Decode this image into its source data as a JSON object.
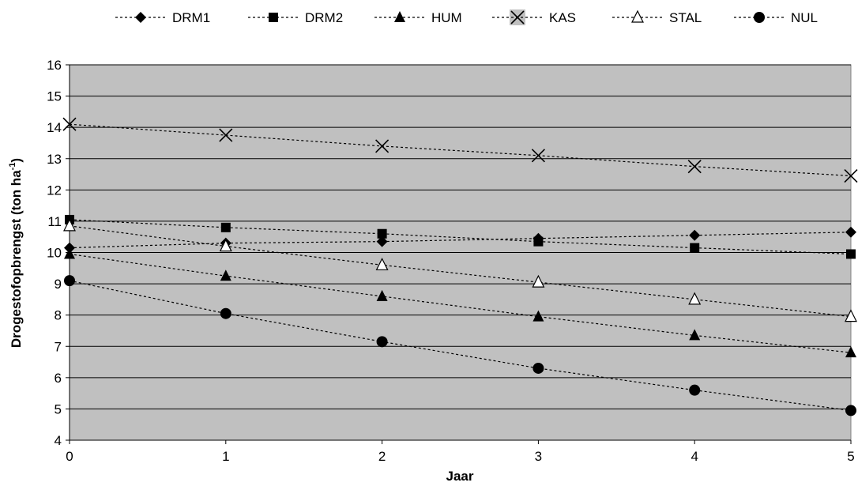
{
  "chart_data": {
    "type": "line",
    "title": "",
    "xlabel": "Jaar",
    "ylabel_main": "Drogestofopbrengst (ton ha",
    "ylabel_sup": "-1",
    "ylabel_close": ")",
    "xlim": [
      0,
      5
    ],
    "ylim": [
      4,
      16
    ],
    "x": [
      0,
      1,
      2,
      3,
      4,
      5
    ],
    "x_tick_labels": [
      "0",
      "1",
      "2",
      "3",
      "4",
      "5"
    ],
    "y_tick_labels": [
      "4",
      "5",
      "6",
      "7",
      "8",
      "9",
      "10",
      "11",
      "12",
      "13",
      "14",
      "15",
      "16"
    ],
    "grid": true,
    "legend_position": "top",
    "plot_background": "#c0c0c0",
    "series": [
      {
        "name": "DRM1",
        "marker": "diamond",
        "values": [
          10.15,
          10.3,
          10.35,
          10.45,
          10.55,
          10.65
        ]
      },
      {
        "name": "DRM2",
        "marker": "square",
        "values": [
          11.05,
          10.8,
          10.6,
          10.35,
          10.15,
          9.95
        ]
      },
      {
        "name": "HUM",
        "marker": "triangle",
        "values": [
          9.95,
          9.25,
          8.6,
          7.95,
          7.35,
          6.8
        ]
      },
      {
        "name": "KAS",
        "marker": "x",
        "values": [
          14.1,
          13.75,
          13.4,
          13.1,
          12.75,
          12.45
        ]
      },
      {
        "name": "STAL",
        "marker": "triangle-open",
        "values": [
          10.85,
          10.2,
          9.6,
          9.05,
          8.5,
          7.95
        ]
      },
      {
        "name": "NUL",
        "marker": "circle",
        "values": [
          9.1,
          8.05,
          7.15,
          6.3,
          5.6,
          4.95
        ]
      }
    ]
  }
}
